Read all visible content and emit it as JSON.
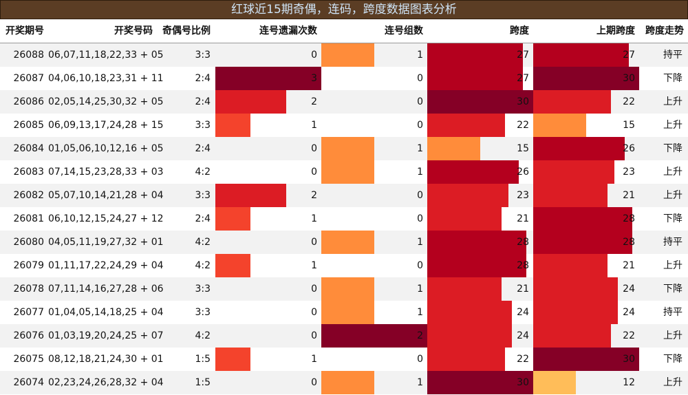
{
  "title": "红球近15期奇偶，连码，跨度数据图表分析",
  "headers": [
    "开奖期号",
    "开奖号码",
    "奇偶号比例",
    "连号遗漏次数",
    "连号组数",
    "跨度",
    "上期跨度",
    "跨度走势"
  ],
  "colors": [
    "#ffbd59",
    "#ff8c3a",
    "#f4432c",
    "#dc1c24",
    "#b4001e",
    "#850026"
  ],
  "scales": {
    "miss_max": 3,
    "groups_max": 2,
    "span_min": 0,
    "span_max": 30
  },
  "chart_data": {
    "type": "table",
    "columns": [
      "开奖期号",
      "开奖号码",
      "奇偶号比例",
      "连号遗漏次数",
      "连号组数",
      "跨度",
      "上期跨度",
      "跨度走势"
    ],
    "rows": [
      {
        "issue": "26088",
        "numbers": "06,07,11,18,22,33 + 05",
        "ratio": "3:3",
        "miss": 0,
        "groups": 1,
        "span": 27,
        "prev_span": 27,
        "trend": "持平"
      },
      {
        "issue": "26087",
        "numbers": "04,06,10,18,23,31 + 11",
        "ratio": "2:4",
        "miss": 3,
        "groups": 0,
        "span": 27,
        "prev_span": 30,
        "trend": "下降"
      },
      {
        "issue": "26086",
        "numbers": "02,05,14,25,30,32 + 05",
        "ratio": "2:4",
        "miss": 2,
        "groups": 0,
        "span": 30,
        "prev_span": 22,
        "trend": "上升"
      },
      {
        "issue": "26085",
        "numbers": "06,09,13,17,24,28 + 15",
        "ratio": "3:3",
        "miss": 1,
        "groups": 0,
        "span": 22,
        "prev_span": 15,
        "trend": "上升"
      },
      {
        "issue": "26084",
        "numbers": "01,05,06,10,12,16 + 05",
        "ratio": "2:4",
        "miss": 0,
        "groups": 1,
        "span": 15,
        "prev_span": 26,
        "trend": "下降"
      },
      {
        "issue": "26083",
        "numbers": "07,14,15,23,28,33 + 03",
        "ratio": "4:2",
        "miss": 0,
        "groups": 1,
        "span": 26,
        "prev_span": 23,
        "trend": "上升"
      },
      {
        "issue": "26082",
        "numbers": "05,07,10,14,21,28 + 04",
        "ratio": "3:3",
        "miss": 2,
        "groups": 0,
        "span": 23,
        "prev_span": 21,
        "trend": "上升"
      },
      {
        "issue": "26081",
        "numbers": "06,10,12,15,24,27 + 12",
        "ratio": "2:4",
        "miss": 1,
        "groups": 0,
        "span": 21,
        "prev_span": 28,
        "trend": "下降"
      },
      {
        "issue": "26080",
        "numbers": "04,05,11,19,27,32 + 01",
        "ratio": "4:2",
        "miss": 0,
        "groups": 1,
        "span": 28,
        "prev_span": 28,
        "trend": "持平"
      },
      {
        "issue": "26079",
        "numbers": "01,11,17,22,24,29 + 04",
        "ratio": "4:2",
        "miss": 1,
        "groups": 0,
        "span": 28,
        "prev_span": 21,
        "trend": "上升"
      },
      {
        "issue": "26078",
        "numbers": "07,11,14,16,27,28 + 06",
        "ratio": "3:3",
        "miss": 0,
        "groups": 1,
        "span": 21,
        "prev_span": 24,
        "trend": "下降"
      },
      {
        "issue": "26077",
        "numbers": "01,04,05,14,18,25 + 04",
        "ratio": "3:3",
        "miss": 0,
        "groups": 1,
        "span": 24,
        "prev_span": 24,
        "trend": "持平"
      },
      {
        "issue": "26076",
        "numbers": "01,03,19,20,24,25 + 07",
        "ratio": "4:2",
        "miss": 0,
        "groups": 2,
        "span": 24,
        "prev_span": 22,
        "trend": "上升"
      },
      {
        "issue": "26075",
        "numbers": "08,12,18,21,24,30 + 01",
        "ratio": "1:5",
        "miss": 1,
        "groups": 0,
        "span": 22,
        "prev_span": 30,
        "trend": "下降"
      },
      {
        "issue": "26074",
        "numbers": "02,23,24,26,28,32 + 04",
        "ratio": "1:5",
        "miss": 0,
        "groups": 1,
        "span": 30,
        "prev_span": 12,
        "trend": "上升"
      }
    ]
  }
}
